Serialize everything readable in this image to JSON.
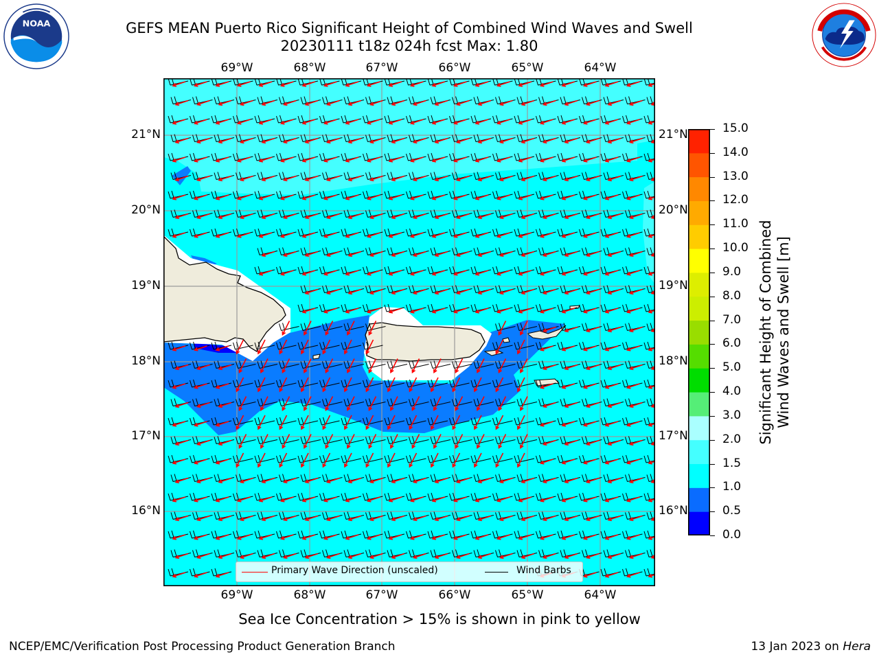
{
  "title_line1": "GEFS MEAN Puerto Rico Significant Height of Combined Wind Waves and Swell",
  "title_line2": "20230111 t18z 024h fcst   Max: 1.80",
  "lon_ticks": [
    "69°W",
    "68°W",
    "67°W",
    "66°W",
    "65°W",
    "64°W"
  ],
  "lat_ticks": [
    "21°N",
    "20°N",
    "19°N",
    "18°N",
    "17°N",
    "16°N"
  ],
  "legend": {
    "wave_label": "Primary Wave Direction (unscaled)",
    "barb_label": "Wind Barbs"
  },
  "colorbar": {
    "levels": [
      "0.0",
      "0.5",
      "1.0",
      "1.5",
      "2.0",
      "3.0",
      "4.0",
      "5.0",
      "6.0",
      "7.0",
      "8.0",
      "9.0",
      "10.0",
      "11.0",
      "12.0",
      "13.0",
      "14.0",
      "15.0"
    ],
    "colors": [
      "#0000ff",
      "#0a6cff",
      "#00ffff",
      "#44ffff",
      "#aaffff",
      "#55ee77",
      "#00dd00",
      "#55dd00",
      "#99dd00",
      "#ccee00",
      "#ddee00",
      "#ffff00",
      "#ffcc00",
      "#ffaa00",
      "#ff8800",
      "#ff5500",
      "#ff2200"
    ],
    "label_line1": "Significant Height of Combined",
    "label_line2": "Wind Waves and Swell [m]"
  },
  "colors": {
    "sea_low": "#00ffff",
    "sea_light": "#44ffff",
    "sea_mid": "#0a7cff",
    "land": "#efecdc",
    "wave_arrow": "#ff0000",
    "wind_barb": "#000000"
  },
  "subtitle": "Sea Ice Concentration > 15% is shown in pink to yellow",
  "footer_left": "NCEP/EMC/Verification Post Processing Product Generation Branch",
  "footer_right_date": "13 Jan 2023 on",
  "footer_right_host": "Hera",
  "logos": {
    "left": "noaa-logo",
    "right": "nws-logo"
  }
}
